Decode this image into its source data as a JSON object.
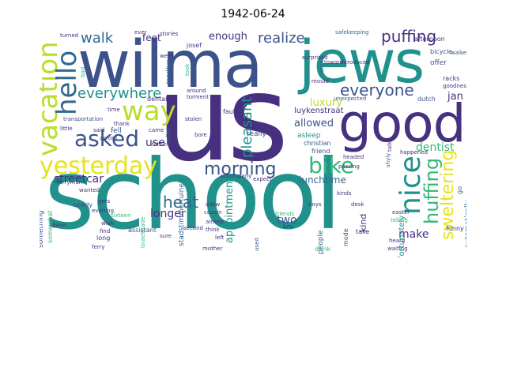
{
  "title": "1942-06-24",
  "palette": {
    "dark_purple": "#46307f",
    "indigo": "#3b528b",
    "slate_blue": "#31688e",
    "teal": "#21918c",
    "green": "#35b779",
    "yellow_green": "#b8de29",
    "yellow": "#e6e419"
  },
  "words": {
    "school": "school",
    "us": "us",
    "wilma": "wilma",
    "jews": "jews",
    "good": "good",
    "yesterday": "yesterday",
    "morning": "morning",
    "bike": "bike",
    "vacation": "vacation",
    "hello": "hello",
    "way": "way",
    "asked": "asked",
    "nice": "nice",
    "walk": "walk",
    "realize": "realize",
    "puffing": "puffing",
    "everyone": "everyone",
    "everywhere": "everywhere",
    "pleasant": "pleasant",
    "heat": "heat",
    "huffing": "huffing",
    "sweltering": "sweltering",
    "streetcar": "streetcar",
    "lunchtime": "lunchtime",
    "appointment": "appointment",
    "longer": "longer",
    "dentist": "dentist",
    "two": "two",
    "make": "make",
    "enough": "enough",
    "feet": "feet",
    "use": "use",
    "luxury": "luxury",
    "allowed": "allowed",
    "jan": "jan",
    "asleep": "asleep",
    "luykenstraat": "luykenstraat",
    "fortunately": "fortunately",
    "really": "really",
    "safekeeping": "safekeeping",
    "afternoon": "afternoon",
    "bicycle": "bicycle",
    "offer": "offer",
    "racks": "racks",
    "walked": "walked",
    "goodness": "goodness",
    "dutch": "dutch",
    "christian": "christian",
    "friend": "friend",
    "desk": "desk",
    "stories": "stories",
    "turned": "turned",
    "ever": "ever",
    "josef": "josef",
    "week": "week",
    "surprised": "surprised",
    "introduced": "introduced",
    "unexpected": "unexpected",
    "toward": "toward",
    "happened": "happened",
    "kinds": "kinds",
    "boys": "boys",
    "friends": "friends",
    "cousin": "cousin",
    "almost": "almost",
    "think": "think",
    "left": "left",
    "mother": "mother",
    "people": "people",
    "kind": "kind",
    "easter": "easter",
    "telling": "telling",
    "heard": "heard",
    "waiting": "waiting",
    "funny": "funny",
    "drink": "drink",
    "boy": "boy",
    "used": "used",
    "take": "take",
    "mode": "mode",
    "ferryman": "ferryman",
    "wanted": "wanted",
    "gave": "gave",
    "somewhat": "somewhat",
    "something": "something",
    "ferry": "ferry",
    "assistant": "assistant",
    "israelbrade": "israelbrade",
    "father": "father",
    "thank": "thank",
    "came": "came",
    "stolen": "stolen",
    "fault": "fault",
    "torment": "torment",
    "dental": "dental",
    "around": "around",
    "transportation": "transportation",
    "time": "time",
    "little": "little",
    "fell": "fell",
    "said": "said",
    "across": "across",
    "nearly": "nearly",
    "gets": "gets",
    "evening": "evening",
    "sixteen": "sixteen",
    "wish": "wish",
    "find": "find",
    "long": "long",
    "sure": "sure",
    "called": "called",
    "second": "second",
    "allow": "allow",
    "accompany": "accompany",
    "bore": "bore",
    "headed": "headed",
    "passing": "passing",
    "shyly": "shyly",
    "talks": "talks",
    "expect": "expect",
    "automatically": "automatically",
    "go": "go",
    "mould": "mould",
    "name": "name",
    "together": "together",
    "bad": "bad",
    "took": "took",
    "stadstimmertuinen": "stadstimmertuinen"
  }
}
